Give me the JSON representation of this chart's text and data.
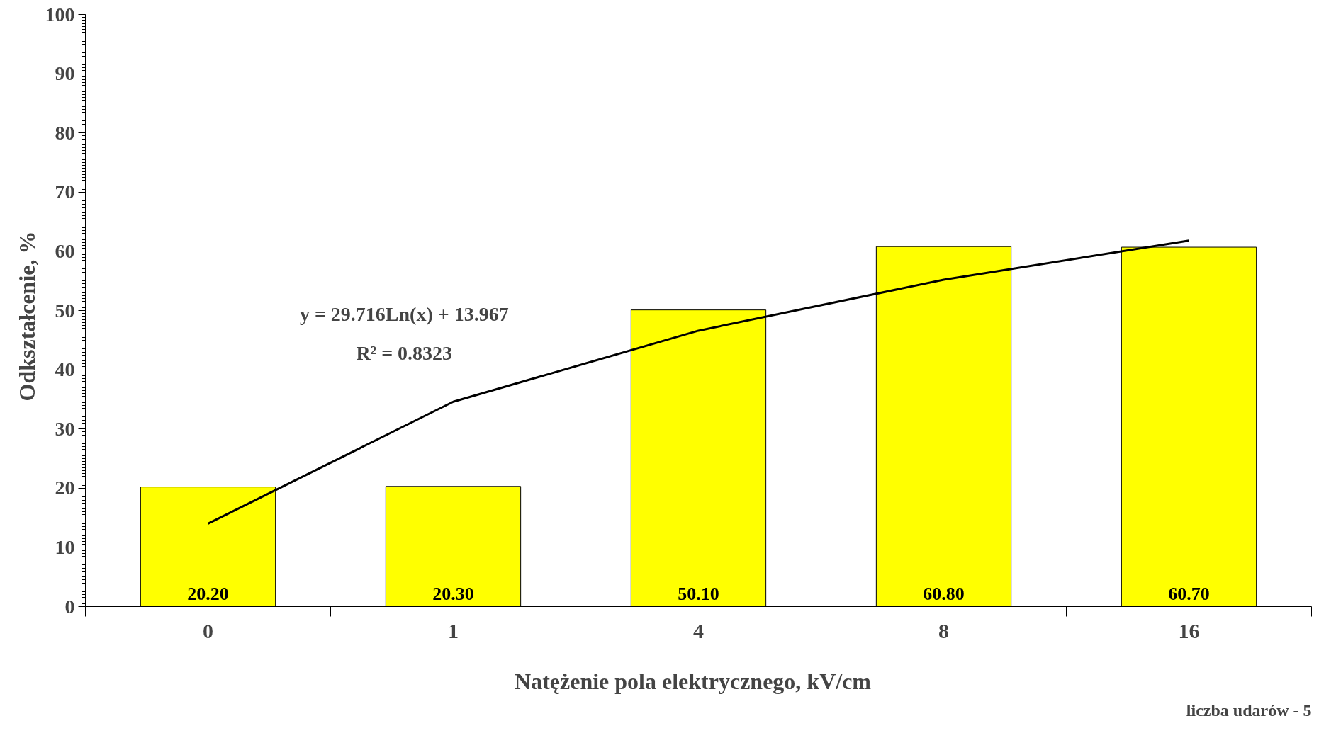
{
  "chart_data": {
    "type": "bar",
    "xlabel": "Natężenie pola elektrycznego,   kV/cm",
    "ylabel": "Odkształcenie,   %",
    "categories": [
      "0",
      "1",
      "4",
      "8",
      "16"
    ],
    "series": [
      {
        "color": "#ffff00",
        "values": [
          20.2,
          20.3,
          50.1,
          60.8,
          60.7
        ],
        "value_labels": [
          "20.20",
          "20.30",
          "50.10",
          "60.80",
          "60.70"
        ]
      },
      {
        "type": "line",
        "color": "#000000",
        "values": [
          14.0,
          34.6,
          46.6,
          55.2,
          61.8
        ]
      }
    ],
    "ylim": [
      0,
      100
    ],
    "yticks": [
      0,
      10,
      20,
      30,
      40,
      50,
      60,
      70,
      80,
      90,
      100
    ],
    "grid": false,
    "line_style": "solid",
    "marker": "none",
    "annotations": [
      "y = 29.716Ln(x) + 13.967",
      "R² = 0.8323",
      "liczba udarów - 5"
    ]
  }
}
